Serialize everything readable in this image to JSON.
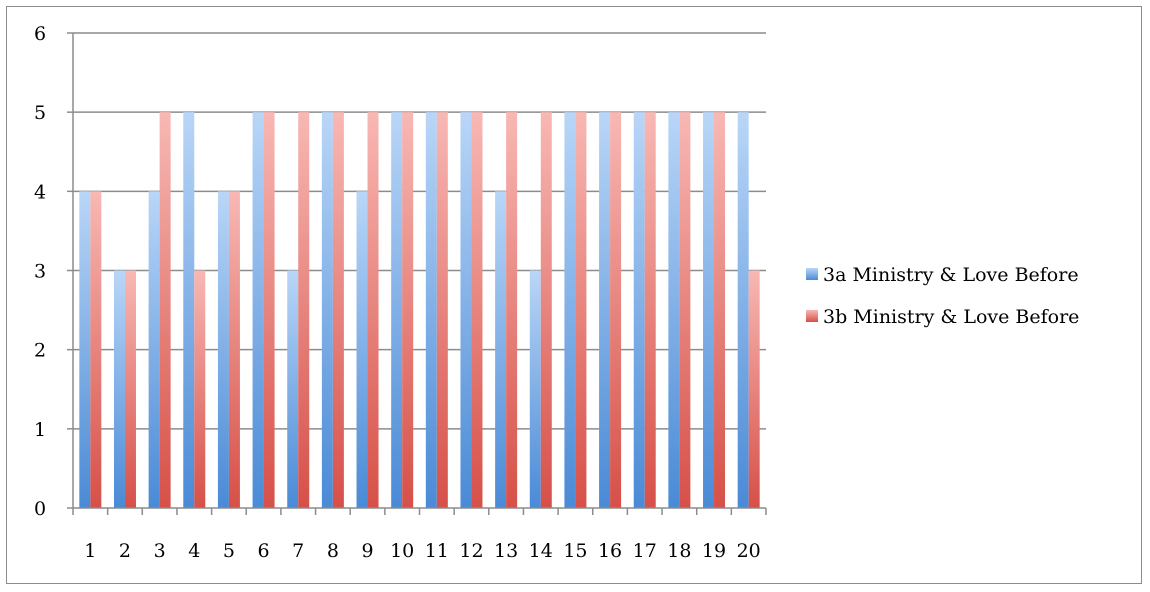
{
  "chart_data": {
    "type": "bar",
    "categories": [
      "1",
      "2",
      "3",
      "4",
      "5",
      "6",
      "7",
      "8",
      "9",
      "10",
      "11",
      "12",
      "13",
      "14",
      "15",
      "16",
      "17",
      "18",
      "19",
      "20"
    ],
    "series": [
      {
        "name": "3a Ministry & Love Before",
        "color": "#5b9bd5",
        "values": [
          4,
          3,
          4,
          5,
          4,
          5,
          3,
          5,
          4,
          5,
          5,
          5,
          4,
          3,
          5,
          5,
          5,
          5,
          5,
          5
        ]
      },
      {
        "name": "3b Ministry & Love Before",
        "color": "#e06666",
        "values": [
          4,
          3,
          5,
          3,
          4,
          5,
          5,
          5,
          5,
          5,
          5,
          5,
          5,
          5,
          5,
          5,
          5,
          5,
          5,
          3
        ]
      }
    ],
    "ylim": [
      0,
      6
    ],
    "yticks": [
      "0",
      "1",
      "2",
      "3",
      "4",
      "5",
      "6"
    ],
    "grid": true,
    "legend": "right"
  }
}
